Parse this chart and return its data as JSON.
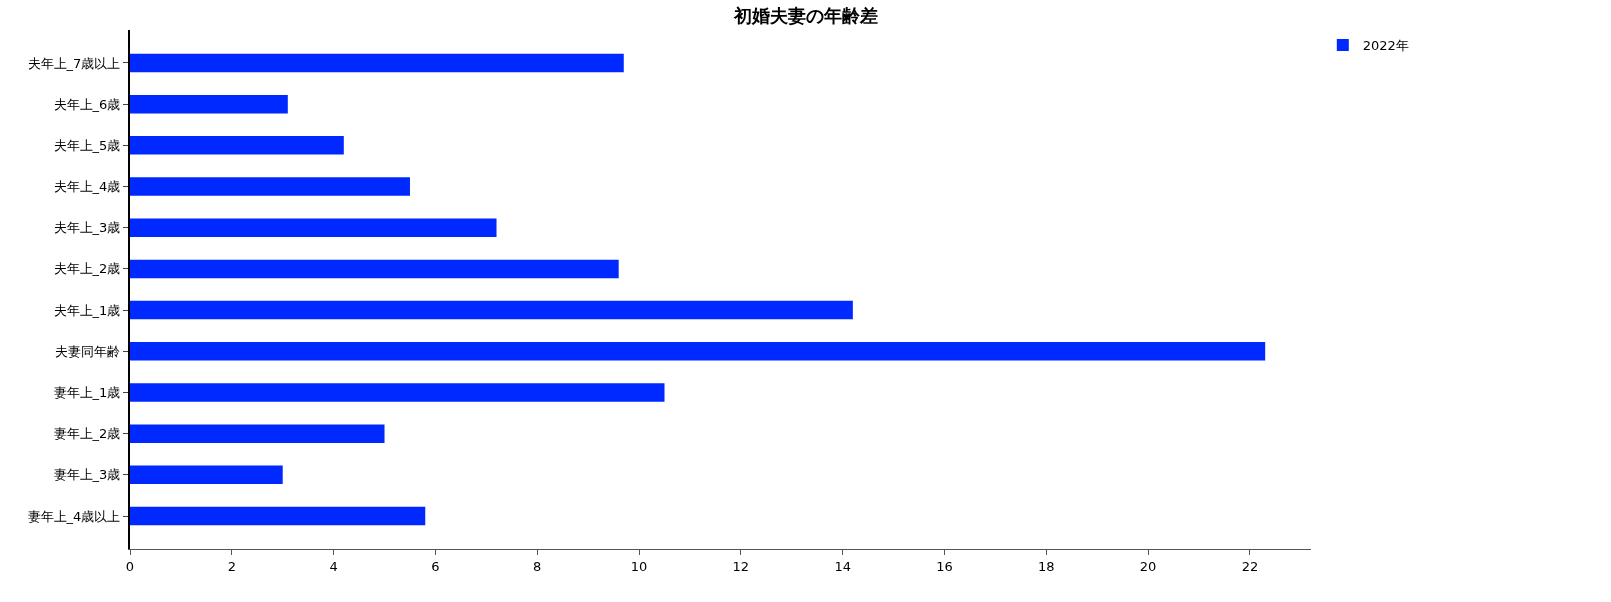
{
  "chart_data": {
    "type": "bar",
    "orientation": "horizontal",
    "title": "初婚夫妻の年齢差",
    "categories": [
      "夫年上_7歳以上",
      "夫年上_6歳",
      "夫年上_5歳",
      "夫年上_4歳",
      "夫年上_3歳",
      "夫年上_2歳",
      "夫年上_1歳",
      "夫妻同年齢",
      "妻年上_1歳",
      "妻年上_2歳",
      "妻年上_3歳",
      "妻年上_4歳以上"
    ],
    "series": [
      {
        "name": "2022年",
        "color": "#0029ff",
        "values": [
          9.7,
          3.1,
          4.2,
          5.5,
          7.2,
          9.6,
          14.2,
          22.3,
          10.5,
          5.0,
          3.0,
          5.8
        ]
      }
    ],
    "xlim": [
      0,
      23.2
    ],
    "xticks": [
      0,
      2,
      4,
      6,
      8,
      10,
      12,
      14,
      16,
      18,
      20,
      22
    ],
    "grid": false,
    "legend": "top right"
  }
}
